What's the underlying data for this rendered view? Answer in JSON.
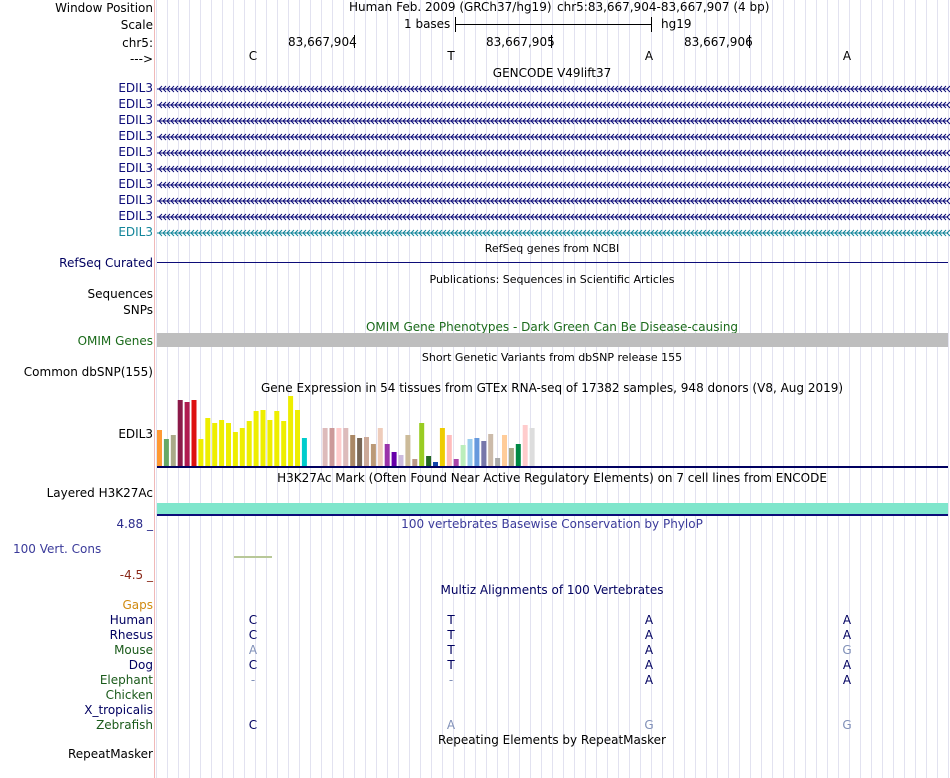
{
  "header": {
    "window_position_label": "Window Position",
    "scale_label": "Scale",
    "chr_label": "chr5:",
    "strand_label": "--->",
    "assembly_text": "Human Feb. 2009 (GRCh37/hg19)",
    "position_text": "chr5:83,667,904-83,667,907 (4 bp)",
    "scale_text": "1 bases",
    "db_text": "hg19",
    "coords": [
      "83,667,904",
      "83,667,905",
      "83,667,906"
    ],
    "bases": [
      "C",
      "T",
      "A",
      "A"
    ]
  },
  "gencode": {
    "title": "GENCODE V49lift37",
    "labels": [
      "EDIL3",
      "EDIL3",
      "EDIL3",
      "EDIL3",
      "EDIL3",
      "EDIL3",
      "EDIL3",
      "EDIL3",
      "EDIL3",
      "EDIL3"
    ],
    "colors": {
      "main": "#0c0c78",
      "last": "#12859a"
    }
  },
  "refseq": {
    "title": "RefSeq genes from NCBI",
    "label": "RefSeq Curated"
  },
  "publications": {
    "title": "Publications: Sequences in Scientific Articles",
    "seq_label": "Sequences",
    "snp_label": "SNPs"
  },
  "omim": {
    "title": "OMIM Gene Phenotypes - Dark Green Can Be Disease-causing",
    "label": "OMIM Genes"
  },
  "dbsnp": {
    "title": "Short Genetic Variants from dbSNP release 155",
    "label": "Common dbSNP(155)"
  },
  "gtex": {
    "title": "Gene Expression in 54 tissues from GTEx RNA-seq of 17382 samples, 948 donors (V8, Aug 2019)",
    "label": "EDIL3",
    "bars": [
      {
        "v": 0.52,
        "c": "#ff9933"
      },
      {
        "v": 0.38,
        "c": "#66a866"
      },
      {
        "v": 0.44,
        "c": "#aaaa88"
      },
      {
        "v": 0.94,
        "c": "#8b1a4a"
      },
      {
        "v": 0.92,
        "c": "#b01a50"
      },
      {
        "v": 0.94,
        "c": "#dd1111"
      },
      {
        "v": 0.38,
        "c": "#eeee00"
      },
      {
        "v": 0.68,
        "c": "#eeee00"
      },
      {
        "v": 0.62,
        "c": "#eeee00"
      },
      {
        "v": 0.66,
        "c": "#eeee00"
      },
      {
        "v": 0.62,
        "c": "#eeee00"
      },
      {
        "v": 0.48,
        "c": "#eeee00"
      },
      {
        "v": 0.54,
        "c": "#eeee00"
      },
      {
        "v": 0.64,
        "c": "#eeee00"
      },
      {
        "v": 0.78,
        "c": "#eeee00"
      },
      {
        "v": 0.8,
        "c": "#eeee00"
      },
      {
        "v": 0.66,
        "c": "#eeee00"
      },
      {
        "v": 0.78,
        "c": "#eeee00"
      },
      {
        "v": 0.64,
        "c": "#eeee00"
      },
      {
        "v": 1.0,
        "c": "#eeee00"
      },
      {
        "v": 0.8,
        "c": "#eeee00"
      },
      {
        "v": 0.4,
        "c": "#00cccc"
      },
      {
        "v": 0.0,
        "c": "#ffffff"
      },
      {
        "v": 0.0,
        "c": "#ffffff"
      },
      {
        "v": 0.54,
        "c": "#ddbbbb"
      },
      {
        "v": 0.54,
        "c": "#cc9999"
      },
      {
        "v": 0.54,
        "c": "#ffcccc"
      },
      {
        "v": 0.54,
        "c": "#ddbbbb"
      },
      {
        "v": 0.44,
        "c": "#aa8866"
      },
      {
        "v": 0.4,
        "c": "#776655"
      },
      {
        "v": 0.42,
        "c": "#ccaa99"
      },
      {
        "v": 0.32,
        "c": "#bb9977"
      },
      {
        "v": 0.54,
        "c": "#eeccbb"
      },
      {
        "v": 0.32,
        "c": "#9933aa"
      },
      {
        "v": 0.2,
        "c": "#6600aa"
      },
      {
        "v": 0.16,
        "c": "#ccbbdd"
      },
      {
        "v": 0.44,
        "c": "#ccbb99"
      },
      {
        "v": 0.1,
        "c": "#bb9988"
      },
      {
        "v": 0.62,
        "c": "#99cc22"
      },
      {
        "v": 0.14,
        "c": "#226622"
      },
      {
        "v": 0.06,
        "c": "#1144aa"
      },
      {
        "v": 0.54,
        "c": "#eecc00"
      },
      {
        "v": 0.44,
        "c": "#ffbbbb"
      },
      {
        "v": 0.1,
        "c": "#aa44aa"
      },
      {
        "v": 0.3,
        "c": "#bbeebb"
      },
      {
        "v": 0.38,
        "c": "#99ccee"
      },
      {
        "v": 0.4,
        "c": "#6699dd"
      },
      {
        "v": 0.36,
        "c": "#7777aa"
      },
      {
        "v": 0.46,
        "c": "#ccbbaa"
      },
      {
        "v": 0.12,
        "c": "#aaaaaa"
      },
      {
        "v": 0.44,
        "c": "#ffcc99"
      },
      {
        "v": 0.26,
        "c": "#aaaa88"
      },
      {
        "v": 0.32,
        "c": "#008844"
      },
      {
        "v": 0.58,
        "c": "#ffcccc"
      },
      {
        "v": 0.54,
        "c": "#dddddd"
      }
    ]
  },
  "h3k27ac": {
    "title": "H3K27Ac Mark (Often Found Near Active Regulatory Elements) on 7 cell lines from ENCODE",
    "label": "Layered H3K27Ac",
    "color": "#7fe6cc"
  },
  "conservation": {
    "title": "100 vertebrates Basewise Conservation by PhyloP",
    "label": "100 Vert. Cons",
    "max_label": "4.88 _",
    "min_label": "-4.5 _"
  },
  "multiz": {
    "title": "Multiz Alignments of 100 Vertebrates",
    "gaps_label": "Gaps",
    "species": [
      {
        "name": "Human",
        "color": "#000060",
        "bases": [
          "C",
          "T",
          "A",
          "A"
        ],
        "faint": [
          false,
          false,
          false,
          false
        ]
      },
      {
        "name": "Rhesus",
        "color": "#000060",
        "bases": [
          "C",
          "T",
          "A",
          "A"
        ],
        "faint": [
          false,
          false,
          false,
          false
        ]
      },
      {
        "name": "Mouse",
        "color": "#1a5a1a",
        "bases": [
          "A",
          "T",
          "A",
          "G"
        ],
        "faint": [
          true,
          false,
          false,
          true
        ]
      },
      {
        "name": "Dog",
        "color": "#000060",
        "bases": [
          "C",
          "T",
          "A",
          "A"
        ],
        "faint": [
          false,
          false,
          false,
          false
        ]
      },
      {
        "name": "Elephant",
        "color": "#1a5a1a",
        "bases": [
          "-",
          "-",
          "A",
          "A"
        ],
        "faint": [
          true,
          true,
          false,
          false
        ]
      },
      {
        "name": "Chicken",
        "color": "#1a5a1a",
        "bases": [
          "",
          "",
          "",
          ""
        ],
        "faint": [
          false,
          false,
          false,
          false
        ]
      },
      {
        "name": "X_tropicalis",
        "color": "#000060",
        "bases": [
          "",
          "",
          "",
          ""
        ],
        "faint": [
          false,
          false,
          false,
          false
        ]
      },
      {
        "name": "Zebrafish",
        "color": "#1a5a1a",
        "bases": [
          "C",
          "A",
          "G",
          "G"
        ],
        "faint": [
          false,
          true,
          true,
          true
        ]
      }
    ]
  },
  "repeatmasker": {
    "title": "Repeating Elements by RepeatMasker",
    "label": "RepeatMasker"
  }
}
